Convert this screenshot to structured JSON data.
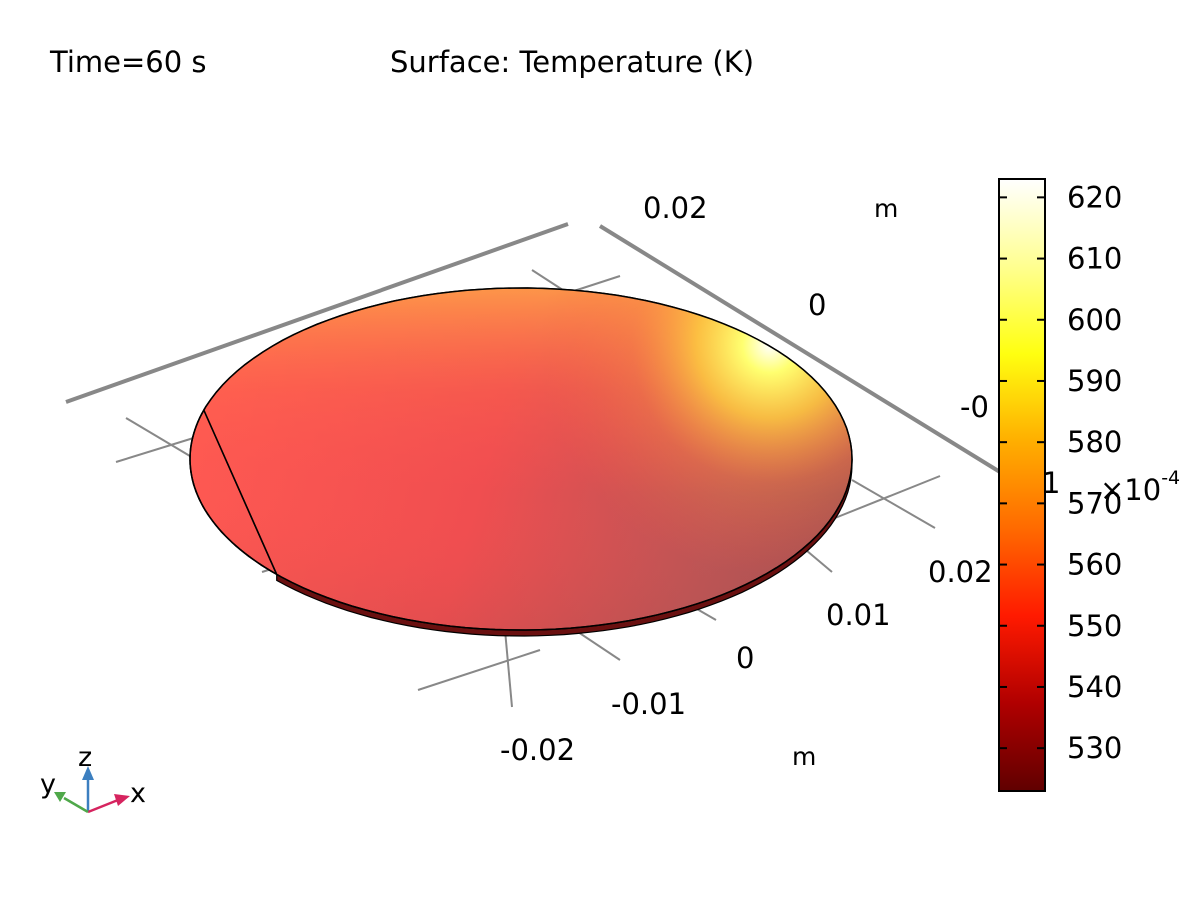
{
  "header": {
    "time_label": "Time=60 s",
    "plot_title": "Surface: Temperature (K)"
  },
  "axes": {
    "unit_label": "m",
    "x_ticks": [
      "-0.02",
      "-0.01",
      "0",
      "0.01",
      "0.02"
    ],
    "y_ticks": [
      "0.02",
      "0",
      "-0"
    ],
    "partial_z_tick": "1",
    "z_scale_exponent_base": "×10",
    "z_scale_exponent_power": "-4"
  },
  "triad": {
    "x": "x",
    "y": "y",
    "z": "z",
    "x_color": "#d6245f",
    "y_color": "#4fa84a",
    "z_color": "#3c7fc0"
  },
  "chart_data": {
    "type": "heatmap",
    "title": "Surface: Temperature (K)",
    "subtitle": "Time=60 s",
    "colorbar": {
      "label": "",
      "colormap": "heat",
      "range": [
        523,
        623
      ],
      "ticks": [
        530,
        540,
        550,
        560,
        570,
        580,
        590,
        600,
        610,
        620
      ],
      "stops": [
        "#600000",
        "#b00000",
        "#ff1a00",
        "#ff6a00",
        "#ffae00",
        "#ffff10",
        "#ffff90",
        "#ffffff"
      ]
    },
    "surface": {
      "shape": "flat-cut disk",
      "max_temperature_region": "top-right edge",
      "max_value": 623,
      "typical_value": 560,
      "axis_unit": "m"
    }
  }
}
